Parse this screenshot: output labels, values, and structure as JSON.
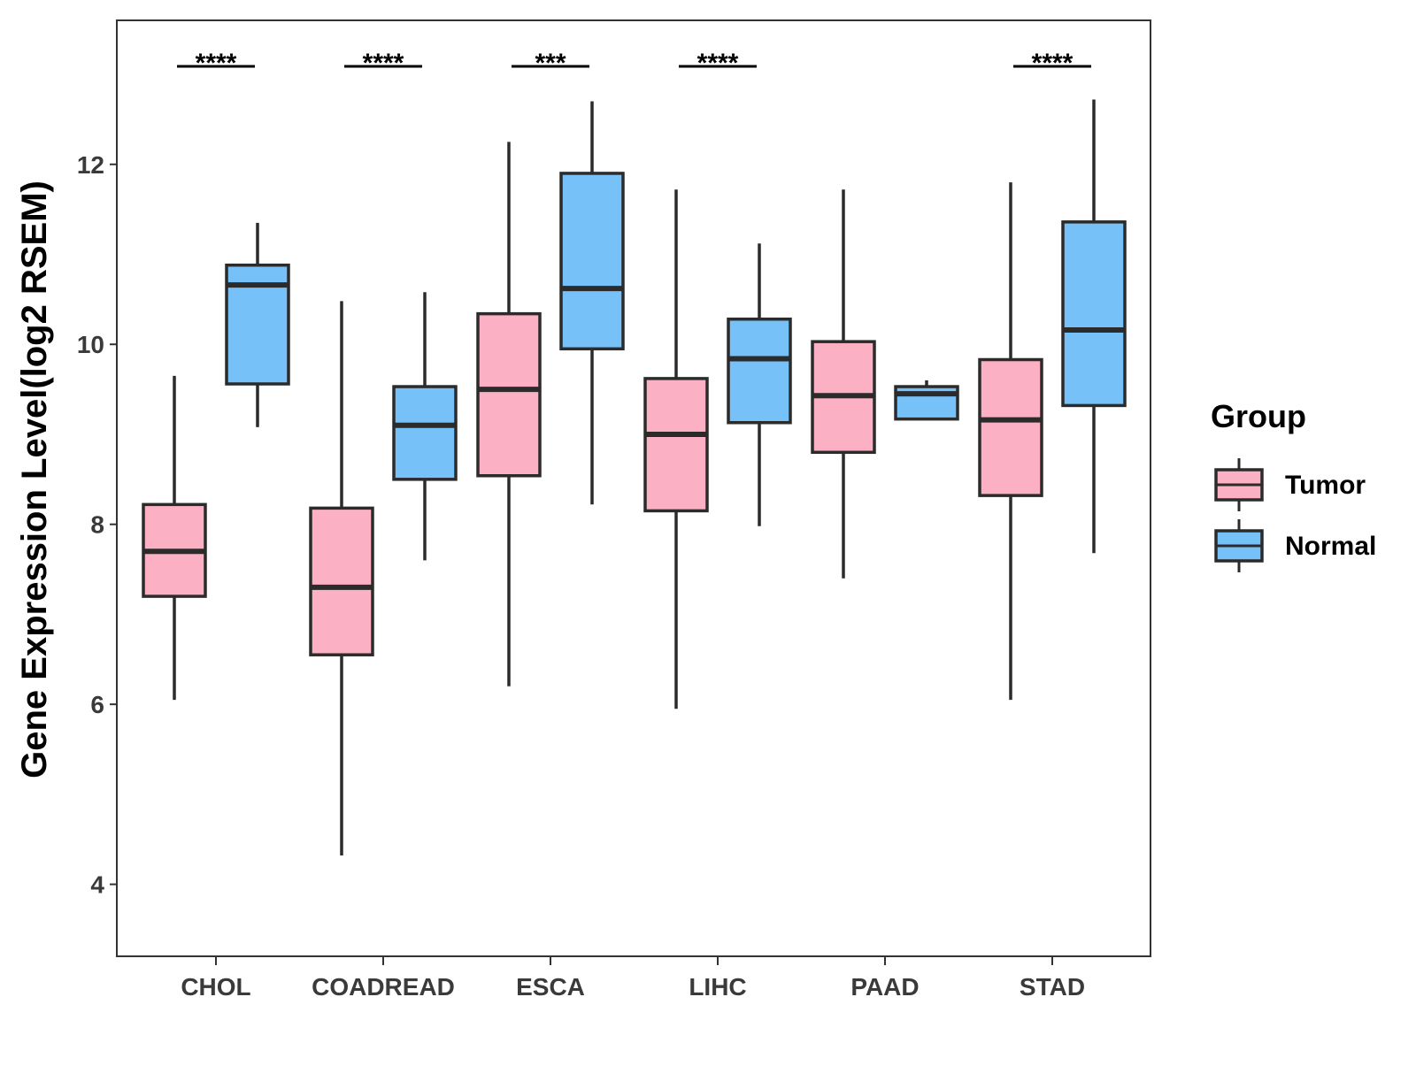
{
  "chart_data": {
    "type": "boxplot",
    "title": "",
    "xlabel": "",
    "ylabel": "Gene Expression Level(log2 RSEM)",
    "ylim": [
      3.2,
      13.6
    ],
    "yticks": [
      4,
      6,
      8,
      10,
      12
    ],
    "grid": false,
    "categories": [
      "CHOL",
      "COADREAD",
      "ESCA",
      "LIHC",
      "PAAD",
      "STAD"
    ],
    "series": [
      {
        "name": "Tumor",
        "color": "#fbb1c3",
        "boxes": [
          {
            "category": "CHOL",
            "min": 6.05,
            "q1": 7.2,
            "median": 7.7,
            "q3": 8.22,
            "max": 9.65
          },
          {
            "category": "COADREAD",
            "min": 4.32,
            "q1": 6.55,
            "median": 7.3,
            "q3": 8.18,
            "max": 10.48
          },
          {
            "category": "ESCA",
            "min": 6.2,
            "q1": 8.54,
            "median": 9.5,
            "q3": 10.34,
            "max": 12.25
          },
          {
            "category": "LIHC",
            "min": 5.95,
            "q1": 8.15,
            "median": 9.0,
            "q3": 9.62,
            "max": 11.72
          },
          {
            "category": "PAAD",
            "min": 7.4,
            "q1": 8.8,
            "median": 9.43,
            "q3": 10.03,
            "max": 11.72
          },
          {
            "category": "STAD",
            "min": 6.05,
            "q1": 8.32,
            "median": 9.16,
            "q3": 9.83,
            "max": 11.8
          }
        ]
      },
      {
        "name": "Normal",
        "color": "#76c1f8",
        "boxes": [
          {
            "category": "CHOL",
            "min": 9.08,
            "q1": 9.56,
            "median": 10.66,
            "q3": 10.88,
            "max": 11.35
          },
          {
            "category": "COADREAD",
            "min": 7.6,
            "q1": 8.5,
            "median": 9.1,
            "q3": 9.53,
            "max": 10.58
          },
          {
            "category": "ESCA",
            "min": 8.22,
            "q1": 9.95,
            "median": 10.62,
            "q3": 11.9,
            "max": 12.7
          },
          {
            "category": "LIHC",
            "min": 7.98,
            "q1": 9.13,
            "median": 9.84,
            "q3": 10.28,
            "max": 11.12
          },
          {
            "category": "PAAD",
            "min": 9.17,
            "q1": 9.17,
            "median": 9.45,
            "q3": 9.53,
            "max": 9.6
          },
          {
            "category": "STAD",
            "min": 7.68,
            "q1": 9.32,
            "median": 10.16,
            "q3": 11.36,
            "max": 12.72
          }
        ]
      }
    ],
    "significance": [
      {
        "category": "CHOL",
        "label": "****"
      },
      {
        "category": "COADREAD",
        "label": "****"
      },
      {
        "category": "ESCA",
        "label": "***"
      },
      {
        "category": "LIHC",
        "label": "****"
      },
      {
        "category": "PAAD",
        "label": ""
      },
      {
        "category": "STAD",
        "label": "****"
      }
    ],
    "legend": {
      "title": "Group",
      "position": "right",
      "entries": [
        "Tumor",
        "Normal"
      ]
    }
  }
}
